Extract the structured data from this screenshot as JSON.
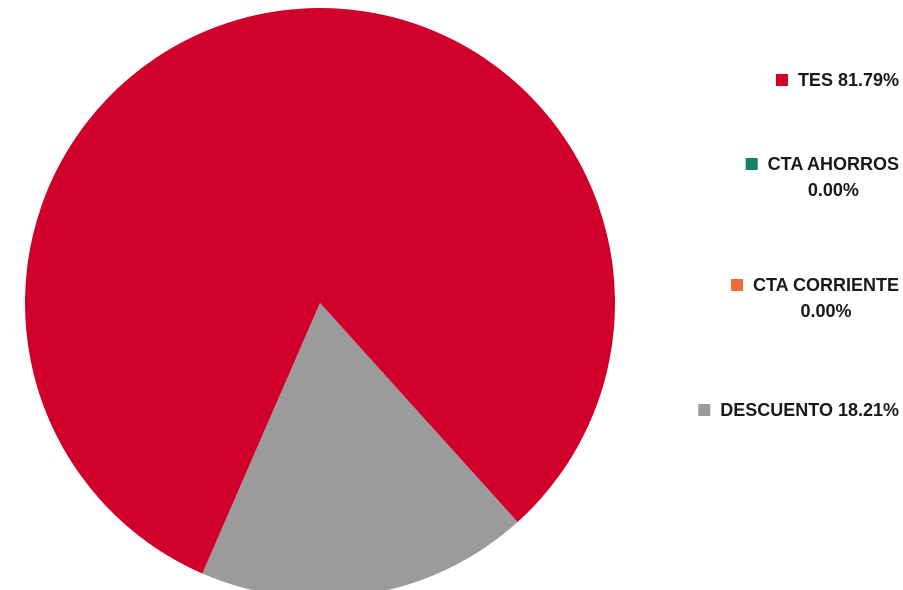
{
  "chart_data": {
    "type": "pie",
    "title": "",
    "slices": [
      {
        "label": "TES",
        "value": 81.79,
        "value_text": "81.79%",
        "color": "#d0002a"
      },
      {
        "label": "CTA AHORROS",
        "value": 0.0,
        "value_text": "0.00%",
        "color": "#17826b"
      },
      {
        "label": "CTA CORRIENTE",
        "value": 0.0,
        "value_text": "0.00%",
        "color": "#f26a36"
      },
      {
        "label": "DESCUENTO",
        "value": 18.21,
        "value_text": "18.21%",
        "color": "#9b9b9b"
      }
    ],
    "legend_position": "right"
  }
}
